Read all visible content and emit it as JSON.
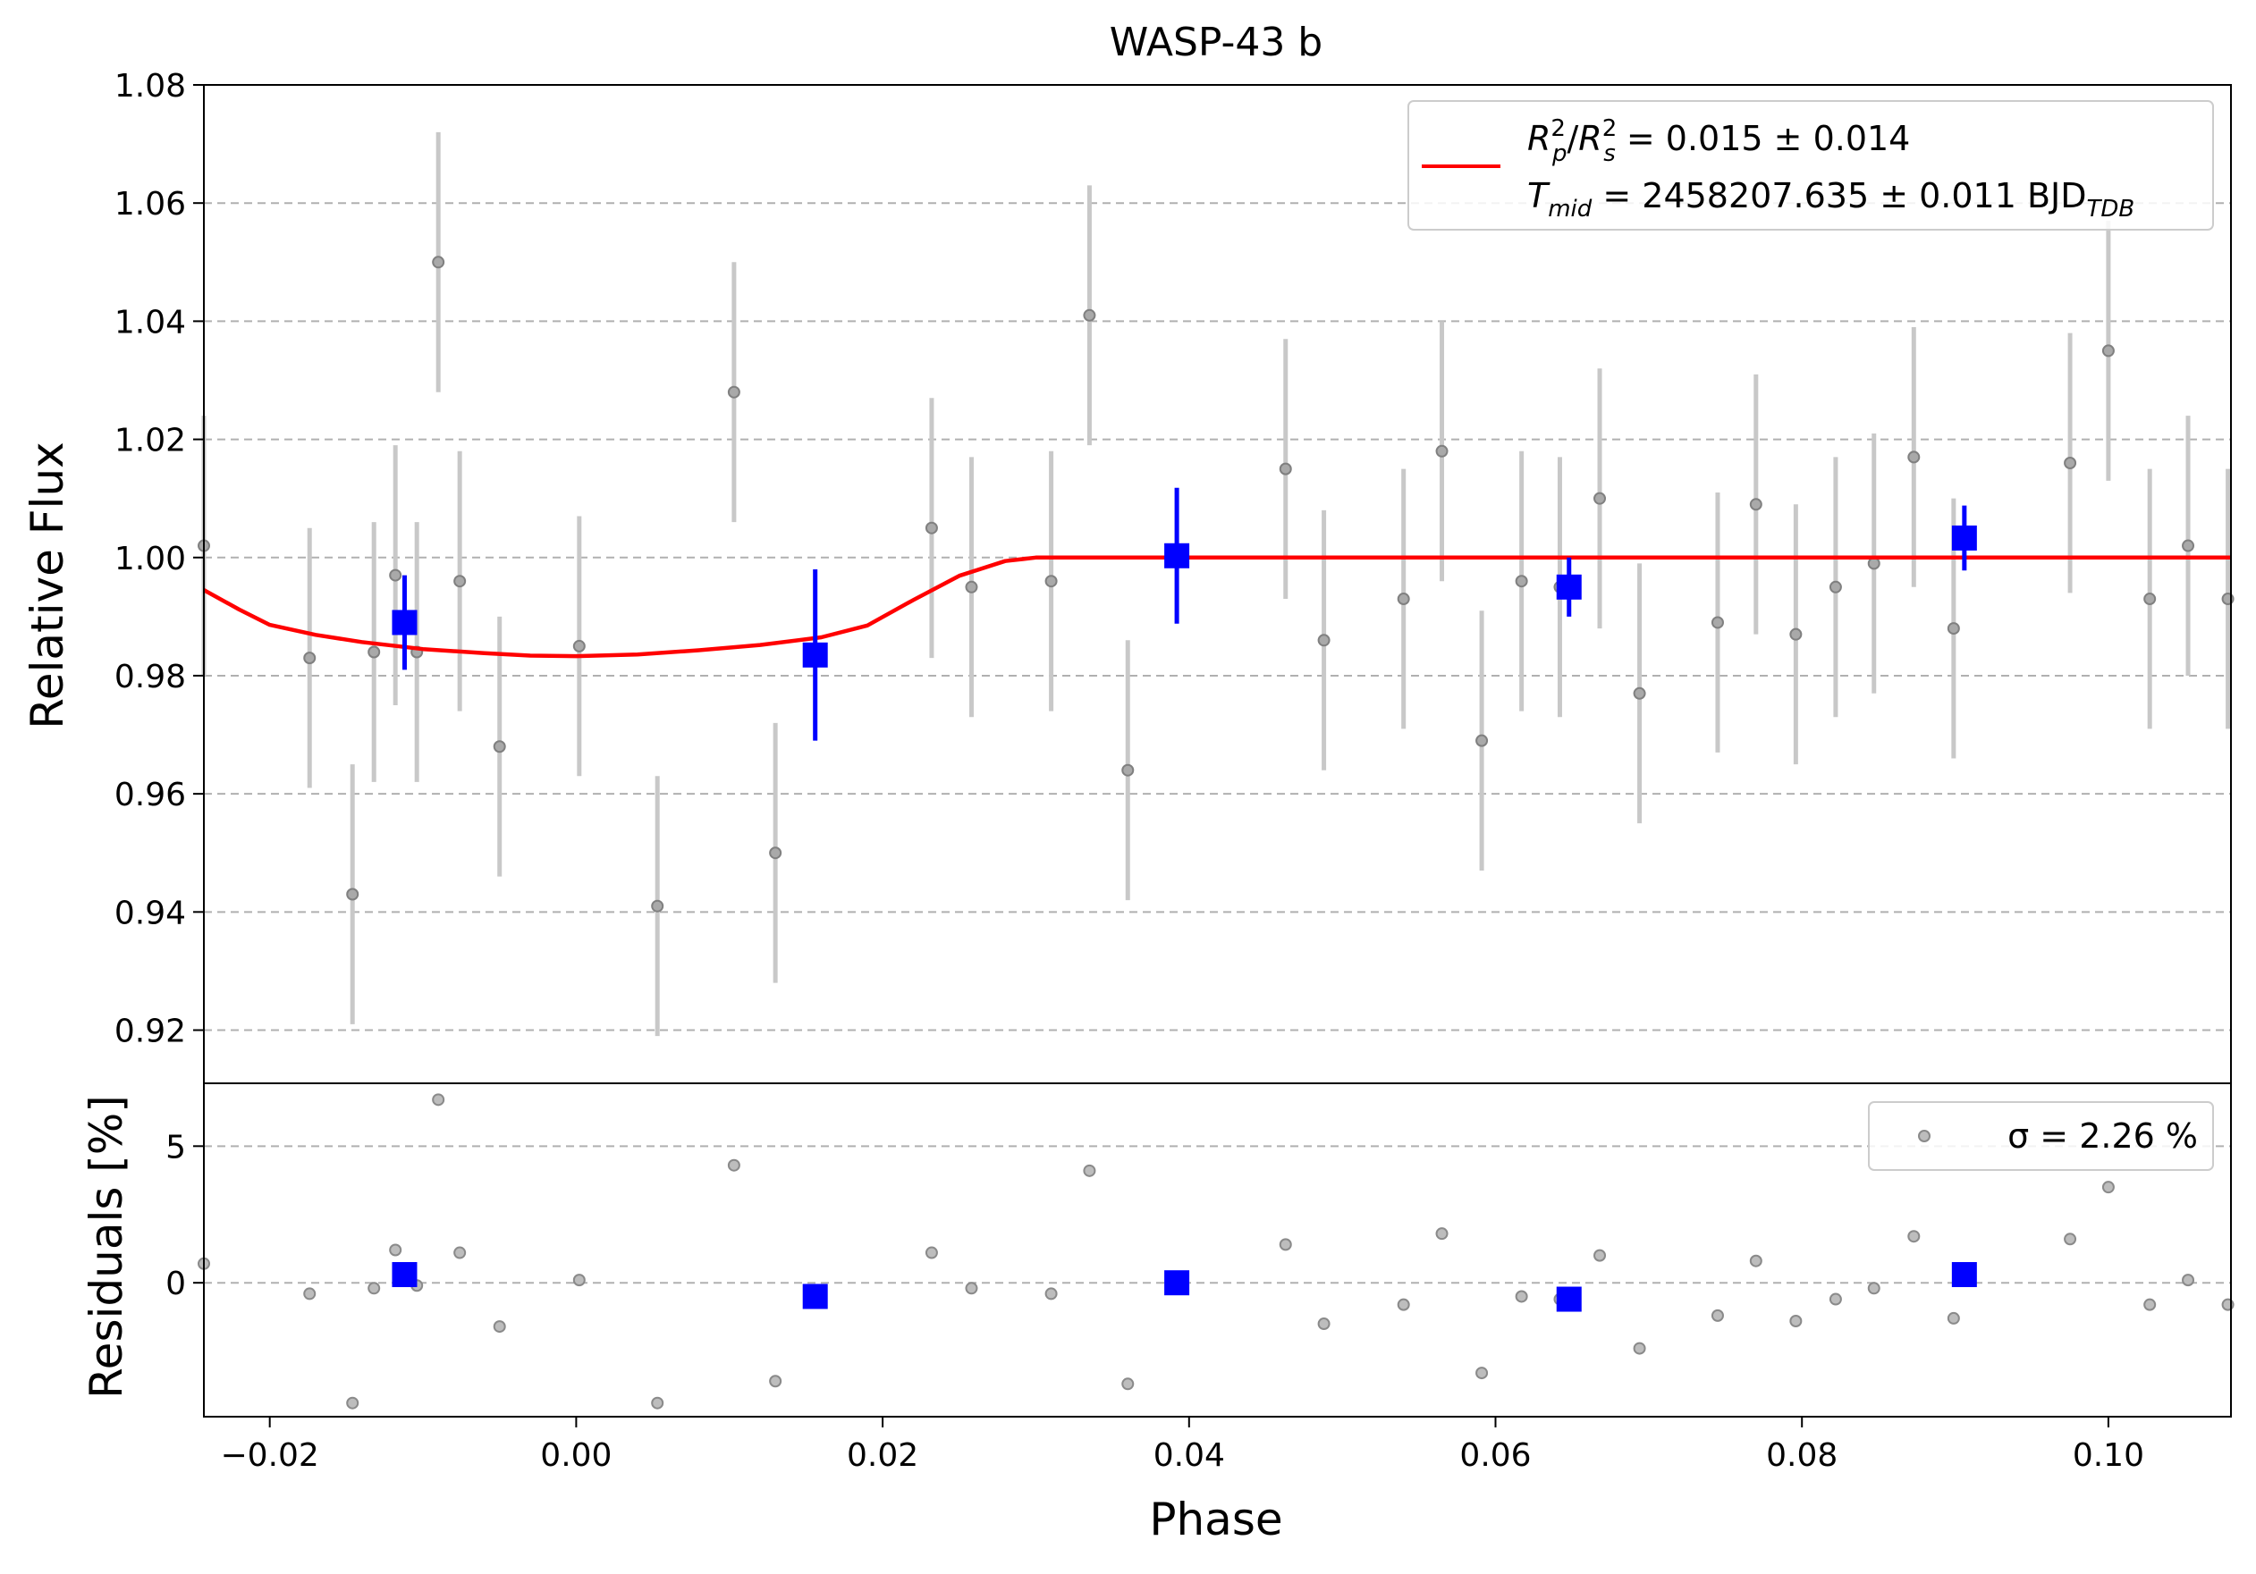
{
  "chart_data": [
    {
      "type": "scatter",
      "panel": "light-curve",
      "title": "WASP-43 b",
      "xlabel": "",
      "ylabel": "Relative Flux",
      "xlim": [
        -0.0243,
        0.108
      ],
      "ylim": [
        0.911,
        1.08
      ],
      "y_ticks": [
        0.92,
        0.94,
        0.96,
        0.98,
        1.0,
        1.02,
        1.04,
        1.06,
        1.08
      ],
      "y_tick_labels": [
        "0.92",
        "0.94",
        "0.96",
        "0.98",
        "1.00",
        "1.02",
        "1.04",
        "1.06",
        "1.08"
      ],
      "grid": "y-dashed",
      "legend_placement": "top-right",
      "legend": {
        "line_1": "R_p^2/R_s^2 = 0.015 ± 0.014",
        "line_2": "T_mid = 2458207.635 ± 0.011 BJD_TDB"
      },
      "colors": {
        "data": "#808080",
        "errorbar": "#c8c8c8",
        "binned": "#0000ff",
        "model": "#ff0000",
        "grid": "#b0b0b0"
      },
      "series": [
        {
          "role": "data",
          "x": [
            -0.0243,
            -0.0174,
            -0.0146,
            -0.0132,
            -0.0118,
            -0.0104,
            -0.009,
            -0.0076,
            -0.005,
            0.0002,
            0.0053,
            0.0103,
            0.013,
            0.0232,
            0.0258,
            0.031,
            0.0335,
            0.036,
            0.0463,
            0.0488,
            0.054,
            0.0565,
            0.0591,
            0.0617,
            0.0642,
            0.0668,
            0.0694,
            0.0745,
            0.077,
            0.0796,
            0.0822,
            0.0847,
            0.0873,
            0.0899,
            0.0975,
            0.1,
            0.1027,
            0.1052,
            0.1078
          ],
          "y": [
            1.002,
            0.983,
            0.943,
            0.984,
            0.997,
            0.984,
            1.05,
            0.996,
            0.968,
            0.985,
            0.941,
            1.028,
            0.95,
            1.005,
            0.995,
            0.996,
            1.041,
            0.964,
            1.015,
            0.986,
            0.993,
            1.018,
            0.969,
            0.996,
            0.995,
            1.01,
            0.977,
            0.989,
            1.009,
            0.987,
            0.995,
            0.999,
            1.017,
            0.988,
            1.016,
            1.035,
            0.993,
            1.002,
            0.993
          ],
          "yerr": [
            0.022,
            0.022,
            0.022,
            0.022,
            0.022,
            0.022,
            0.022,
            0.022,
            0.022,
            0.022,
            0.022,
            0.022,
            0.022,
            0.022,
            0.022,
            0.022,
            0.022,
            0.022,
            0.022,
            0.022,
            0.022,
            0.022,
            0.022,
            0.022,
            0.022,
            0.022,
            0.022,
            0.022,
            0.022,
            0.022,
            0.022,
            0.022,
            0.022,
            0.022,
            0.022,
            0.022,
            0.022,
            0.022,
            0.022
          ]
        },
        {
          "role": "binned",
          "x": [
            -0.0112,
            0.0156,
            0.0392,
            0.0648,
            0.0906
          ],
          "y": [
            0.989,
            0.9835,
            1.0003,
            0.995,
            1.0033
          ],
          "yerr": [
            0.008,
            0.0145,
            0.0115,
            0.005,
            0.0055
          ]
        },
        {
          "role": "model",
          "x": [
            -0.0243,
            -0.022,
            -0.02,
            -0.017,
            -0.014,
            -0.01,
            -0.006,
            -0.003,
            0.0,
            0.004,
            0.008,
            0.012,
            0.016,
            0.019,
            0.022,
            0.025,
            0.028,
            0.03,
            0.035,
            0.05,
            0.07,
            0.09,
            0.108
          ],
          "y": [
            0.9945,
            0.9912,
            0.9886,
            0.9869,
            0.9857,
            0.9845,
            0.9838,
            0.9834,
            0.9833,
            0.9836,
            0.9843,
            0.9852,
            0.9865,
            0.9885,
            0.9928,
            0.9969,
            0.9994,
            1.0,
            1.0,
            1.0,
            1.0,
            1.0,
            1.0
          ]
        }
      ]
    },
    {
      "type": "scatter",
      "panel": "residuals",
      "title": "",
      "xlabel": "Phase",
      "ylabel": "Residuals [%]",
      "xlim": [
        -0.0243,
        0.108
      ],
      "ylim": [
        -4.9,
        7.3
      ],
      "x_ticks": [
        -0.02,
        0.0,
        0.02,
        0.04,
        0.06,
        0.08,
        0.1
      ],
      "x_tick_labels": [
        "−0.02",
        "0.00",
        "0.02",
        "0.04",
        "0.06",
        "0.08",
        "0.10"
      ],
      "y_ticks": [
        0,
        5
      ],
      "y_tick_labels": [
        "0",
        "5"
      ],
      "grid": "y-dashed",
      "legend_placement": "top-right",
      "legend": {
        "text": "σ = 2.26 %"
      },
      "series": [
        {
          "role": "data",
          "x": [
            -0.0243,
            -0.0174,
            -0.0146,
            -0.0132,
            -0.0118,
            -0.0104,
            -0.009,
            -0.0076,
            -0.005,
            0.0002,
            0.0053,
            0.0103,
            0.013,
            0.0232,
            0.0258,
            0.031,
            0.0335,
            0.036,
            0.0463,
            0.0488,
            0.054,
            0.0565,
            0.0591,
            0.0617,
            0.0642,
            0.0668,
            0.0694,
            0.0745,
            0.077,
            0.0796,
            0.0822,
            0.0847,
            0.0873,
            0.0899,
            0.0975,
            0.1,
            0.1027,
            0.1052,
            0.1078
          ],
          "y": [
            0.7,
            -0.4,
            -4.4,
            -0.2,
            1.2,
            -0.1,
            6.7,
            1.1,
            -1.6,
            0.1,
            -4.4,
            4.3,
            -3.6,
            1.1,
            -0.2,
            -0.4,
            4.1,
            -3.7,
            1.4,
            -1.5,
            -0.8,
            1.8,
            -3.3,
            -0.5,
            -0.6,
            1.0,
            -2.4,
            -1.2,
            0.8,
            -1.4,
            -0.6,
            -0.2,
            1.7,
            -1.3,
            1.6,
            3.5,
            -0.8,
            0.1,
            -0.8
          ]
        },
        {
          "role": "binned",
          "x": [
            -0.0112,
            0.0156,
            0.0392,
            0.0648,
            0.0906
          ],
          "y": [
            0.3,
            -0.5,
            0.0,
            -0.6,
            0.3
          ]
        }
      ]
    }
  ]
}
